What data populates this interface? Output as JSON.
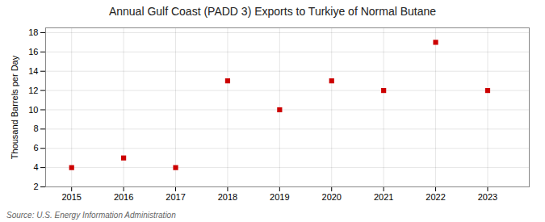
{
  "chart_data": {
    "type": "scatter",
    "title": "Annual Gulf Coast (PADD 3) Exports to Turkiye of Normal Butane",
    "ylabel": "Thousand Barrels per Day",
    "source": "Source: U.S. Energy Information Administration",
    "x": [
      2015,
      2016,
      2017,
      2018,
      2019,
      2020,
      2021,
      2022,
      2023
    ],
    "values": [
      4,
      5,
      4,
      13,
      10,
      13,
      12,
      17,
      12
    ],
    "color": "#cc0000",
    "marker": "square",
    "xlim": [
      2014.5,
      2023.8
    ],
    "xticks": [
      2015,
      2016,
      2017,
      2018,
      2019,
      2020,
      2021,
      2022,
      2023
    ],
    "ylim": [
      2,
      18.5
    ],
    "yticks": [
      2,
      4,
      6,
      8,
      10,
      12,
      14,
      16,
      18
    ],
    "grid": true
  }
}
